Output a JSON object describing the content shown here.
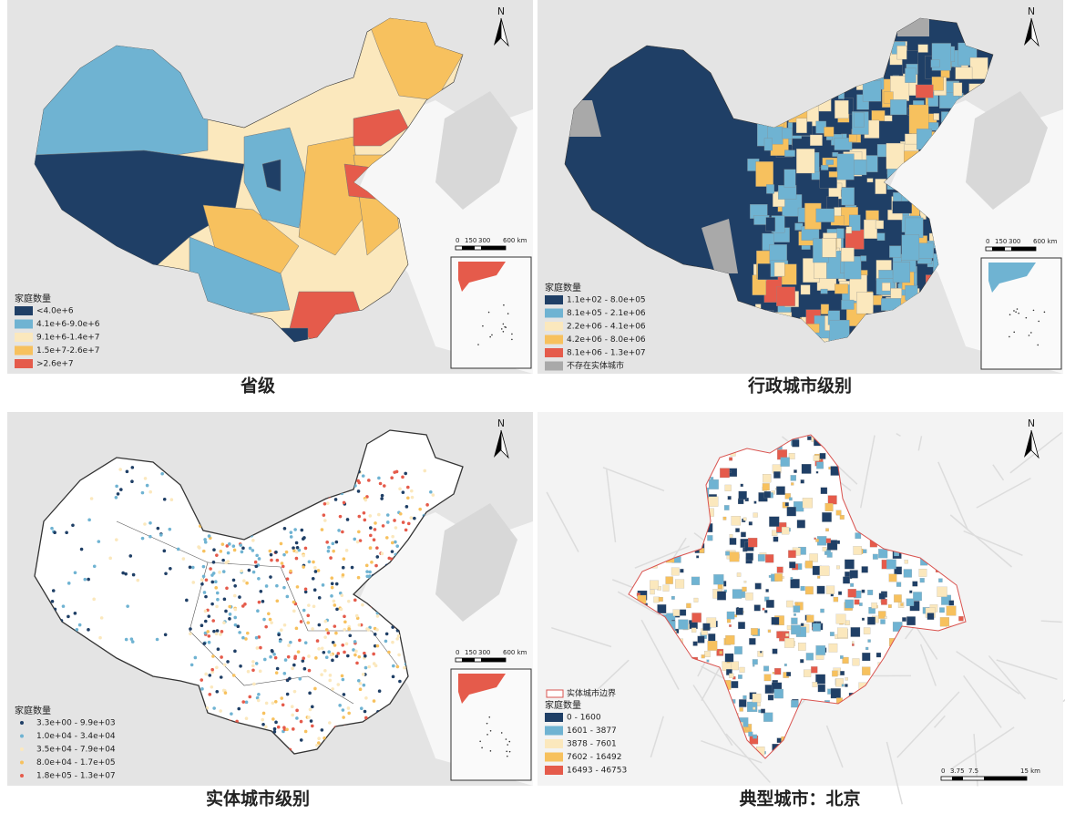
{
  "panels": [
    {
      "caption": "省级",
      "north": "N",
      "scale": [
        "0",
        "150",
        "300",
        "600 km"
      ],
      "legend": {
        "title": "家庭数量",
        "items": [
          {
            "label": "<4.0e+6",
            "color": "#1f3f66"
          },
          {
            "label": "4.1e+6-9.0e+6",
            "color": "#6fb3d2"
          },
          {
            "label": "9.1e+6-1.4e+7",
            "color": "#fbe8bd"
          },
          {
            "label": "1.5e+7-2.6e+7",
            "color": "#f7c15e"
          },
          {
            "label": ">2.6e+7",
            "color": "#e55b4b"
          }
        ]
      }
    },
    {
      "caption": "行政城市级别",
      "north": "N",
      "scale": [
        "0",
        "150",
        "300",
        "600 km"
      ],
      "legend": {
        "title": "家庭数量",
        "items": [
          {
            "label": "1.1e+02 - 8.0e+05",
            "color": "#1f3f66"
          },
          {
            "label": "8.1e+05 - 2.1e+06",
            "color": "#6fb3d2"
          },
          {
            "label": "2.2e+06 - 4.1e+06",
            "color": "#fbe8bd"
          },
          {
            "label": "4.2e+06 - 8.0e+06",
            "color": "#f7c15e"
          },
          {
            "label": "8.1e+06 - 1.3e+07",
            "color": "#e55b4b"
          },
          {
            "label": "不存在实体城市",
            "color": "#a9a9a9"
          }
        ]
      }
    },
    {
      "caption": "实体城市级别",
      "north": "N",
      "scale": [
        "0",
        "150",
        "300",
        "600 km"
      ],
      "legend": {
        "title": "家庭数量",
        "items": [
          {
            "label": "3.3e+00 - 9.9e+03",
            "color": "#1f3f66"
          },
          {
            "label": "1.0e+04 - 3.4e+04",
            "color": "#6fb3d2"
          },
          {
            "label": "3.5e+04 - 7.9e+04",
            "color": "#fbe8bd"
          },
          {
            "label": "8.0e+04 - 1.7e+05",
            "color": "#f7c15e"
          },
          {
            "label": "1.8e+05 - 1.3e+07",
            "color": "#e55b4b"
          }
        ]
      }
    },
    {
      "caption": "典型城市：北京",
      "north": "N",
      "scale": [
        "0",
        "3.75",
        "7.5",
        "15 km"
      ],
      "boundary": "实体城市边界",
      "legend": {
        "title": "家庭数量",
        "items": [
          {
            "label": "0 - 1600",
            "color": "#1f3f66"
          },
          {
            "label": "1601 - 3877",
            "color": "#6fb3d2"
          },
          {
            "label": "3878 - 7601",
            "color": "#fbe8bd"
          },
          {
            "label": "7602 - 16492",
            "color": "#f7c15e"
          },
          {
            "label": "16493 - 46753",
            "color": "#e55b4b"
          }
        ]
      }
    }
  ]
}
